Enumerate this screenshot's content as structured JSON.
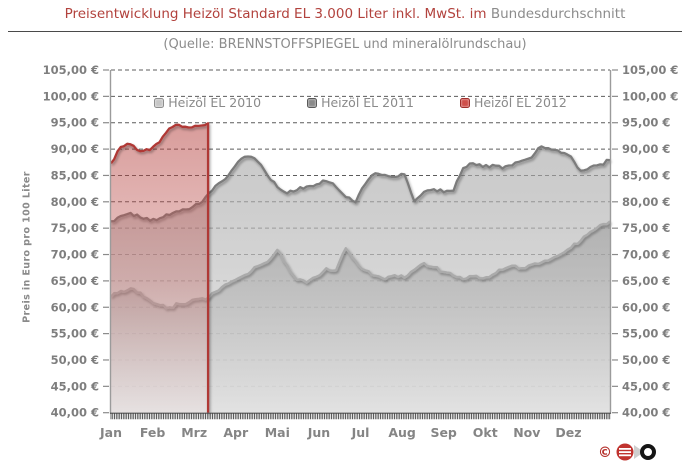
{
  "title": {
    "red_part": "Preisentwicklung Heizöl Standard EL 3.000 Liter inkl. MwSt. im",
    "gray_part": "Bundesdurchschnitt"
  },
  "subtitle": "(Quelle: BRENNSTOFFSPIEGEL und mineralölrundschau)",
  "y_axis": {
    "title": "Preis in Euro pro 100 Liter",
    "tick_values": [
      105,
      100,
      95,
      90,
      85,
      80,
      75,
      70,
      65,
      60,
      55,
      50,
      45,
      40
    ],
    "tick_labels": [
      "105,00 €",
      "100,00 €",
      "95,00 €",
      "90,00 €",
      "85,00 €",
      "80,00 €",
      "75,00 €",
      "70,00 €",
      "65,00 €",
      "60,00 €",
      "55,00 €",
      "50,00 €",
      "45,00 €",
      "40,00 €"
    ]
  },
  "x_axis": {
    "month_labels": [
      "Jan",
      "Feb",
      "Mrz",
      "Apr",
      "Mai",
      "Jun",
      "Jul",
      "Aug",
      "Sep",
      "Okt",
      "Nov",
      "Dez"
    ]
  },
  "legend": {
    "items": [
      {
        "label": "Heizöl EL 2010",
        "swatch_fill": "#c6c6c6",
        "swatch_border": "#8e8e8e"
      },
      {
        "label": "Heizöl EL 2011",
        "swatch_fill": "#8a8a8a",
        "swatch_border": "#5a5a5a"
      },
      {
        "label": "Heizöl EL 2012",
        "swatch_fill": "#cf4f4a",
        "swatch_border": "#9e2f2b"
      }
    ]
  },
  "logo": {
    "copyright_symbol": "©"
  },
  "colors": {
    "title_red": "#b2423d",
    "text_gray": "#8c8c8c",
    "grid_line": "#5c5c5c",
    "axis_line": "#9b9b9b",
    "series_2010": "#ababab",
    "series_2011": "#7b7b7b",
    "series_2012": "#b03936"
  },
  "chart_data": {
    "type": "area",
    "title": "Preisentwicklung Heizöl Standard EL 3.000 Liter inkl. MwSt. im Bundesdurchschnitt",
    "source": "(Quelle: BRENNSTOFFSPIEGEL und mineralölrundschau)",
    "x_categories": [
      "Jan",
      "Feb",
      "Mrz",
      "Apr",
      "Mai",
      "Jun",
      "Jul",
      "Aug",
      "Sep",
      "Okt",
      "Nov",
      "Dez"
    ],
    "ylabel": "Preis in Euro pro 100 Liter",
    "ylim": [
      40,
      105
    ],
    "ytick_step": 5,
    "grid": "horizontal-dashed",
    "legend_position": "top-inside",
    "x_resolution": "weekly points across the year (daily ticks on axis)",
    "series": [
      {
        "name": "Heizöl EL 2010",
        "color": "#ababab",
        "unit": "EUR per 100 Liter",
        "days_covered": 365,
        "values": [
          62.0,
          63.1,
          63.6,
          62.8,
          61.3,
          60.4,
          60.0,
          60.6,
          61.0,
          61.6,
          61.9,
          63.2,
          64.5,
          65.5,
          66.3,
          67.8,
          68.6,
          70.9,
          68.0,
          65.2,
          64.7,
          65.8,
          67.4,
          67.0,
          71.2,
          68.8,
          67.0,
          66.0,
          65.3,
          66.1,
          65.6,
          67.1,
          68.4,
          67.6,
          66.7,
          66.0,
          65.3,
          65.9,
          65.5,
          66.2,
          67.1,
          67.9,
          67.4,
          68.1,
          68.5,
          69.2,
          70.1,
          71.3,
          72.6,
          74.3,
          75.6,
          76.3
        ]
      },
      {
        "name": "Heizöl EL 2011",
        "color": "#7b7b7b",
        "unit": "EUR per 100 Liter",
        "days_covered": 365,
        "values": [
          76.3,
          77.3,
          77.9,
          77.0,
          76.4,
          76.9,
          77.5,
          78.2,
          78.6,
          79.6,
          81.6,
          83.5,
          85.0,
          87.6,
          88.6,
          87.6,
          85.0,
          82.8,
          81.6,
          82.2,
          82.9,
          83.3,
          83.9,
          82.8,
          80.9,
          79.9,
          83.4,
          85.4,
          85.1,
          84.7,
          85.2,
          80.1,
          81.9,
          82.4,
          81.8,
          82.1,
          86.4,
          87.3,
          86.6,
          87.0,
          86.3,
          86.9,
          87.8,
          88.4,
          90.5,
          89.9,
          89.3,
          88.6,
          85.9,
          86.6,
          87.1,
          87.9
        ]
      },
      {
        "name": "Heizöl EL 2012",
        "color": "#b03936",
        "unit": "EUR per 100 Liter",
        "days_covered": 71,
        "values": [
          87.3,
          90.4,
          90.9,
          89.6,
          89.8,
          91.3,
          93.9,
          94.6,
          94.1,
          94.4,
          94.9
        ]
      }
    ]
  }
}
